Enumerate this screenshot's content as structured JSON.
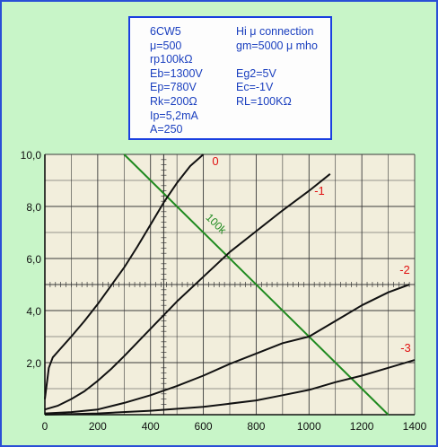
{
  "info_box": {
    "rows": [
      {
        "left": "6CW5",
        "right": "Hi μ connection"
      },
      {
        "left": " μ=500",
        "right": "gm=5000 μ mho"
      },
      {
        "left": "rp100kΩ",
        "right": ""
      },
      {
        "left": "Eb=1300V",
        "right": " Eg2=5V"
      },
      {
        "left": "Ep=780V",
        "right": " Ec=-1V"
      },
      {
        "left": "Rk=200Ω",
        "right": " RL=100KΩ"
      },
      {
        "left": "Ip=5,2mA",
        "right": ""
      },
      {
        "left": "A=250",
        "right": ""
      }
    ]
  },
  "colors": {
    "background": "#c8f5c8",
    "plot_area": "#f2eedc",
    "grid": "#3a3a3a",
    "curves": "#111111",
    "loadline": "#1f8a1f",
    "curve_labels": "#e01010",
    "info_text": "#1a3fbf",
    "info_border": "#1a3fe0"
  },
  "chart_data": {
    "type": "line",
    "title": "",
    "xlabel": "",
    "ylabel": "",
    "xlim": [
      0,
      1400
    ],
    "ylim": [
      0,
      10
    ],
    "x_ticks": [
      "0",
      "200",
      "400",
      "600",
      "800",
      "1000",
      "1200",
      "1400"
    ],
    "y_ticks": [
      "2,0",
      "4,0",
      "6,0",
      "8,0",
      "10,0"
    ],
    "grid": true,
    "series": [
      {
        "name": "0",
        "points": [
          [
            0,
            0.6
          ],
          [
            15,
            1.8
          ],
          [
            30,
            2.2
          ],
          [
            60,
            2.55
          ],
          [
            100,
            3.0
          ],
          [
            150,
            3.6
          ],
          [
            200,
            4.25
          ],
          [
            250,
            4.95
          ],
          [
            300,
            5.65
          ],
          [
            350,
            6.45
          ],
          [
            400,
            7.3
          ],
          [
            450,
            8.15
          ],
          [
            500,
            8.9
          ],
          [
            550,
            9.55
          ],
          [
            600,
            10.0
          ]
        ]
      },
      {
        "name": "-1",
        "points": [
          [
            0,
            0.2
          ],
          [
            50,
            0.35
          ],
          [
            100,
            0.6
          ],
          [
            150,
            0.9
          ],
          [
            200,
            1.3
          ],
          [
            250,
            1.75
          ],
          [
            300,
            2.25
          ],
          [
            400,
            3.3
          ],
          [
            500,
            4.35
          ],
          [
            600,
            5.3
          ],
          [
            700,
            6.25
          ],
          [
            800,
            7.05
          ],
          [
            900,
            7.85
          ],
          [
            1000,
            8.6
          ],
          [
            1080,
            9.25
          ]
        ]
      },
      {
        "name": "-2",
        "points": [
          [
            0,
            0.05
          ],
          [
            100,
            0.1
          ],
          [
            200,
            0.2
          ],
          [
            300,
            0.45
          ],
          [
            400,
            0.75
          ],
          [
            500,
            1.1
          ],
          [
            600,
            1.5
          ],
          [
            700,
            1.95
          ],
          [
            800,
            2.35
          ],
          [
            900,
            2.75
          ],
          [
            1000,
            3.0
          ],
          [
            1100,
            3.6
          ],
          [
            1200,
            4.2
          ],
          [
            1300,
            4.7
          ],
          [
            1380,
            5.0
          ]
        ]
      },
      {
        "name": "-3",
        "points": [
          [
            0,
            0.0
          ],
          [
            200,
            0.05
          ],
          [
            400,
            0.15
          ],
          [
            600,
            0.3
          ],
          [
            800,
            0.55
          ],
          [
            900,
            0.75
          ],
          [
            1000,
            0.95
          ],
          [
            1100,
            1.25
          ],
          [
            1200,
            1.5
          ],
          [
            1300,
            1.8
          ],
          [
            1400,
            2.1
          ]
        ]
      }
    ],
    "load_line": {
      "name": "100k",
      "points": [
        [
          300,
          10.0
        ],
        [
          1300,
          0.0
        ]
      ]
    }
  }
}
